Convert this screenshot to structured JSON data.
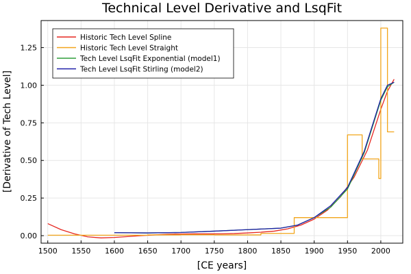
{
  "chart_data": {
    "type": "line",
    "title": "Technical Level Derivative and LsqFit",
    "xlabel": "[CE years]",
    "ylabel": "[Derivative of Tech Level]",
    "xlim": [
      1490,
      2033
    ],
    "ylim": [
      -0.05,
      1.43
    ],
    "xticks": [
      1500,
      1550,
      1600,
      1650,
      1700,
      1750,
      1800,
      1850,
      1900,
      1950,
      2000
    ],
    "xtick_labels": [
      "1500",
      "1550",
      "1600",
      "1650",
      "1700",
      "1750",
      "1800",
      "1850",
      "1900",
      "1950",
      "2000"
    ],
    "yticks": [
      0,
      0.25,
      0.5,
      0.75,
      1.0,
      1.25
    ],
    "ytick_labels": [
      "0.00",
      "0.25",
      "0.50",
      "0.75",
      "1.00",
      "1.25"
    ],
    "grid": true,
    "legend_position": "top-left",
    "series": [
      {
        "name": "Historic Tech Level Spline",
        "color": "#e6261f",
        "x": [
          1500,
          1520,
          1540,
          1560,
          1580,
          1600,
          1620,
          1640,
          1660,
          1680,
          1700,
          1720,
          1740,
          1760,
          1780,
          1800,
          1820,
          1840,
          1860,
          1880,
          1900,
          1920,
          1940,
          1960,
          1980,
          2000,
          2010,
          2020
        ],
        "y": [
          0.08,
          0.04,
          0.012,
          -0.008,
          -0.015,
          -0.012,
          -0.006,
          0.0,
          0.005,
          0.009,
          0.011,
          0.012,
          0.012,
          0.012,
          0.014,
          0.018,
          0.023,
          0.03,
          0.045,
          0.07,
          0.11,
          0.17,
          0.26,
          0.39,
          0.57,
          0.84,
          0.96,
          1.04
        ]
      },
      {
        "name": "Historic Tech Level Straight",
        "color": "#f2a51a",
        "step": true,
        "x": [
          1500,
          1520,
          1600,
          1650,
          1700,
          1750,
          1800,
          1815,
          1820,
          1870,
          1900,
          1920,
          1948,
          1950,
          1970,
          1972,
          1995,
          1997,
          2000,
          2003,
          2005,
          2010,
          2020
        ],
        "y": [
          0.003,
          0.003,
          0.003,
          0.005,
          0.006,
          0.005,
          0.005,
          0.005,
          0.015,
          0.12,
          0.12,
          0.12,
          0.12,
          0.67,
          0.67,
          0.51,
          0.51,
          0.38,
          1.38,
          1.38,
          1.38,
          0.69,
          0.69
        ]
      },
      {
        "name": "Tech Level LsqFit Exponential (model1)",
        "color": "#2e9e3a",
        "x": [
          1600,
          1650,
          1700,
          1750,
          1800,
          1850,
          1875,
          1900,
          1925,
          1950,
          1975,
          1990,
          2000,
          2010,
          2020
        ],
        "y": [
          0.02,
          0.018,
          0.021,
          0.03,
          0.04,
          0.05,
          0.07,
          0.12,
          0.19,
          0.31,
          0.55,
          0.76,
          0.9,
          0.99,
          1.02
        ]
      },
      {
        "name": "Tech Level LsqFit Stirling (model2)",
        "color": "#1f1fa8",
        "x": [
          1600,
          1650,
          1700,
          1750,
          1800,
          1850,
          1875,
          1900,
          1925,
          1950,
          1975,
          1990,
          2000,
          2010,
          2020
        ],
        "y": [
          0.02,
          0.018,
          0.021,
          0.03,
          0.04,
          0.05,
          0.07,
          0.12,
          0.2,
          0.32,
          0.56,
          0.77,
          0.91,
          1.0,
          1.02
        ]
      }
    ]
  }
}
